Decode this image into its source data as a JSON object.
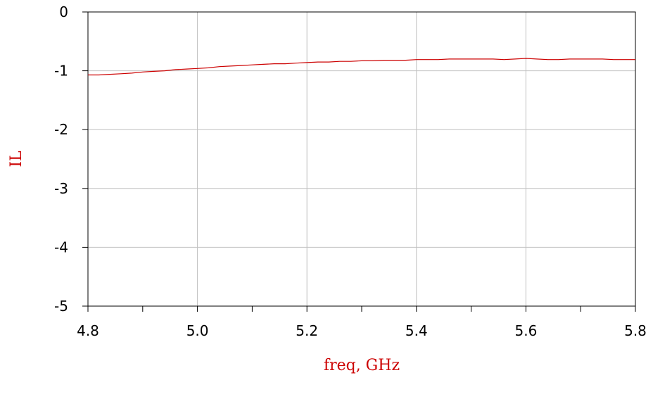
{
  "chart_data": {
    "type": "line",
    "xlabel": "freq, GHz",
    "ylabel": "IL",
    "xlim": [
      4.8,
      5.8
    ],
    "ylim": [
      -5,
      0
    ],
    "xticks": [
      4.8,
      5.0,
      5.2,
      5.4,
      5.6,
      5.8
    ],
    "xtick_labels": [
      "4.8",
      "5.0",
      "5.2",
      "5.4",
      "5.6",
      "5.8"
    ],
    "xminor_ticks": [
      4.9,
      5.1,
      5.3,
      5.5,
      5.7
    ],
    "yticks": [
      0,
      -1,
      -2,
      -3,
      -4,
      -5
    ],
    "ytick_labels": [
      "0",
      "-1",
      "-2",
      "-3",
      "-4",
      "-5"
    ],
    "grid": true,
    "colors": {
      "series": "#cc0000",
      "axis_label": "#cc0000",
      "grid": "#c0c0c0",
      "frame": "#000000"
    },
    "series": [
      {
        "x": [
          4.8,
          4.82,
          4.84,
          4.86,
          4.88,
          4.9,
          4.92,
          4.94,
          4.96,
          4.98,
          5.0,
          5.02,
          5.04,
          5.06,
          5.08,
          5.1,
          5.12,
          5.14,
          5.16,
          5.18,
          5.2,
          5.22,
          5.24,
          5.26,
          5.28,
          5.3,
          5.32,
          5.34,
          5.36,
          5.38,
          5.4,
          5.42,
          5.44,
          5.46,
          5.48,
          5.5,
          5.52,
          5.54,
          5.56,
          5.58,
          5.6,
          5.62,
          5.64,
          5.66,
          5.68,
          5.7,
          5.72,
          5.74,
          5.76,
          5.78,
          5.8
        ],
        "y": [
          -1.07,
          -1.07,
          -1.06,
          -1.05,
          -1.04,
          -1.02,
          -1.01,
          -1.0,
          -0.98,
          -0.97,
          -0.96,
          -0.95,
          -0.93,
          -0.92,
          -0.91,
          -0.9,
          -0.89,
          -0.88,
          -0.88,
          -0.87,
          -0.86,
          -0.85,
          -0.85,
          -0.84,
          -0.84,
          -0.83,
          -0.83,
          -0.82,
          -0.82,
          -0.82,
          -0.81,
          -0.81,
          -0.81,
          -0.8,
          -0.8,
          -0.8,
          -0.8,
          -0.8,
          -0.81,
          -0.8,
          -0.79,
          -0.8,
          -0.81,
          -0.81,
          -0.8,
          -0.8,
          -0.8,
          -0.8,
          -0.81,
          -0.81,
          -0.81
        ]
      }
    ]
  }
}
